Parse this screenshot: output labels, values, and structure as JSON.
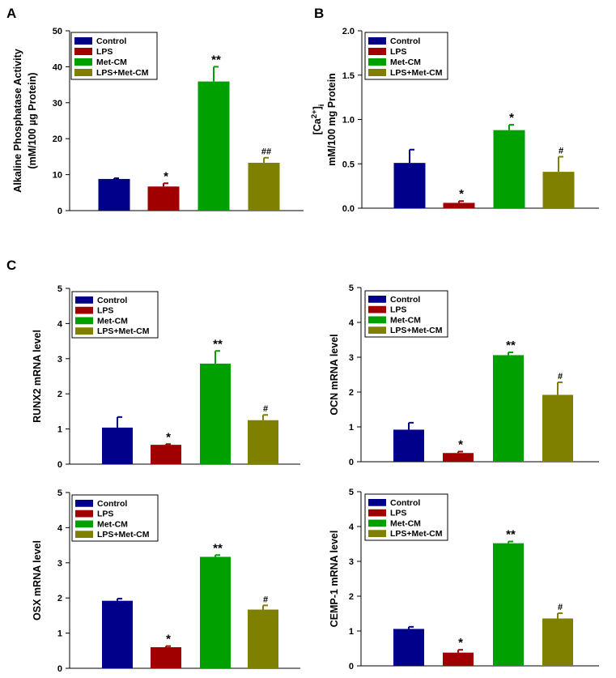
{
  "panel_letters": [
    "A",
    "B",
    "C"
  ],
  "legend": [
    "Control",
    "LPS",
    "Met-CM",
    "LPS+Met-CM"
  ],
  "colors": [
    "#00008b",
    "#a00000",
    "#00a000",
    "#808000"
  ],
  "chart_data": [
    {
      "type": "bar",
      "panel": "A",
      "title": "",
      "categories": [
        "Control",
        "LPS",
        "Met-CM",
        "LPS+Met-CM"
      ],
      "values": [
        8.8,
        6.7,
        35.9,
        13.3
      ],
      "errors": [
        0.2,
        0.9,
        4.1,
        1.4
      ],
      "significance": [
        "",
        "*",
        "**",
        "##"
      ],
      "ylabel_lines": [
        "Alkaline Phosphatase Activity",
        "(mM/100 µg Protein)"
      ],
      "xlabel": "",
      "ylim": [
        0,
        50
      ],
      "yticks": [
        "0",
        "10",
        "20",
        "30",
        "40",
        "50"
      ],
      "legend_position": "top-left"
    },
    {
      "type": "bar",
      "panel": "B",
      "title": "",
      "categories": [
        "Control",
        "LPS",
        "Met-CM",
        "LPS+Met-CM"
      ],
      "values": [
        0.51,
        0.06,
        0.88,
        0.41
      ],
      "errors": [
        0.15,
        0.02,
        0.06,
        0.17
      ],
      "significance": [
        "",
        "*",
        "*",
        "#"
      ],
      "ylabel_lines": [
        "[Ca2+]i",
        "mM/100 mg Protein"
      ],
      "ylabel_parts": {
        "base": "[Ca",
        "sup": "2+",
        "close": "]",
        "sub": "i"
      },
      "xlabel": "",
      "ylim": [
        0,
        2
      ],
      "yticks": [
        "0.0",
        "0.5",
        "1.0",
        "1.5",
        "2.0"
      ],
      "legend_position": "top-left"
    },
    {
      "type": "bar",
      "panel": "C-RUNX2",
      "title": "",
      "categories": [
        "Control",
        "LPS",
        "Met-CM",
        "LPS+Met-CM"
      ],
      "values": [
        1.04,
        0.55,
        2.86,
        1.25
      ],
      "errors": [
        0.3,
        0.02,
        0.36,
        0.15
      ],
      "significance": [
        "",
        "*",
        "**",
        "#"
      ],
      "ylabel_lines": [
        "RUNX2 mRNA level"
      ],
      "xlabel": "",
      "ylim": [
        0,
        5
      ],
      "yticks": [
        "0",
        "1",
        "2",
        "3",
        "4",
        "5"
      ],
      "legend_position": "top-left"
    },
    {
      "type": "bar",
      "panel": "C-OCN",
      "title": "",
      "categories": [
        "Control",
        "LPS",
        "Met-CM",
        "LPS+Met-CM"
      ],
      "values": [
        0.92,
        0.25,
        3.06,
        1.92
      ],
      "errors": [
        0.2,
        0.04,
        0.08,
        0.36
      ],
      "significance": [
        "",
        "*",
        "**",
        "#"
      ],
      "ylabel_lines": [
        "OCN mRNA level"
      ],
      "xlabel": "",
      "ylim": [
        0,
        5
      ],
      "yticks": [
        "0",
        "1",
        "2",
        "3",
        "4",
        "5"
      ],
      "legend_position": "top-left"
    },
    {
      "type": "bar",
      "panel": "C-OSX",
      "title": "",
      "categories": [
        "Control",
        "LPS",
        "Met-CM",
        "LPS+Met-CM"
      ],
      "values": [
        1.92,
        0.6,
        3.17,
        1.67
      ],
      "errors": [
        0.06,
        0.03,
        0.05,
        0.12
      ],
      "significance": [
        "",
        "*",
        "**",
        "#"
      ],
      "ylabel_lines": [
        "OSX mRNA level"
      ],
      "xlabel": "",
      "ylim": [
        0,
        5
      ],
      "yticks": [
        "0",
        "1",
        "2",
        "3",
        "4",
        "5"
      ],
      "legend_position": "top-left"
    },
    {
      "type": "bar",
      "panel": "C-CEMP1",
      "title": "",
      "categories": [
        "Control",
        "LPS",
        "Met-CM",
        "LPS+Met-CM"
      ],
      "values": [
        1.06,
        0.38,
        3.52,
        1.36
      ],
      "errors": [
        0.06,
        0.08,
        0.05,
        0.15
      ],
      "significance": [
        "",
        "*",
        "**",
        "#"
      ],
      "ylabel_lines": [
        "CEMP-1 mRNA level"
      ],
      "xlabel": "",
      "ylim": [
        0,
        5
      ],
      "yticks": [
        "0",
        "1",
        "2",
        "3",
        "4",
        "5"
      ],
      "legend_position": "top-left"
    }
  ]
}
